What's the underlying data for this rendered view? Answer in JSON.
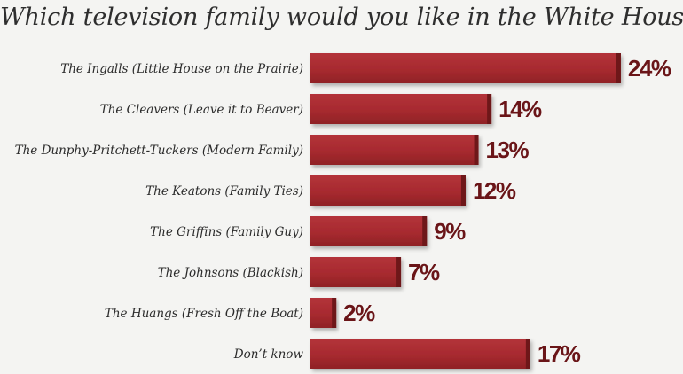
{
  "chart_data": {
    "type": "bar",
    "orientation": "horizontal",
    "title": "Which television family would you like in the White House?",
    "categories": [
      "The Ingalls (Little House on the Prairie)",
      "The Cleavers (Leave it to Beaver)",
      "The Dunphy-Pritchett-Tuckers (Modern Family)",
      "The Keatons (Family Ties)",
      "The Griffins (Family Guy)",
      "The Johnsons (Blackish)",
      "The Huangs (Fresh Off the Boat)",
      "Don’t know"
    ],
    "values": [
      24,
      14,
      13,
      12,
      9,
      7,
      2,
      17
    ],
    "value_labels": [
      "24%",
      "14%",
      "13%",
      "12%",
      "9%",
      "7%",
      "2%",
      "17%"
    ],
    "unit": "%",
    "grid": false,
    "legend": "none",
    "colors": {
      "bar": "#a92b30",
      "bar_edge": "#6e1719",
      "value_text": "#6a1518"
    }
  }
}
